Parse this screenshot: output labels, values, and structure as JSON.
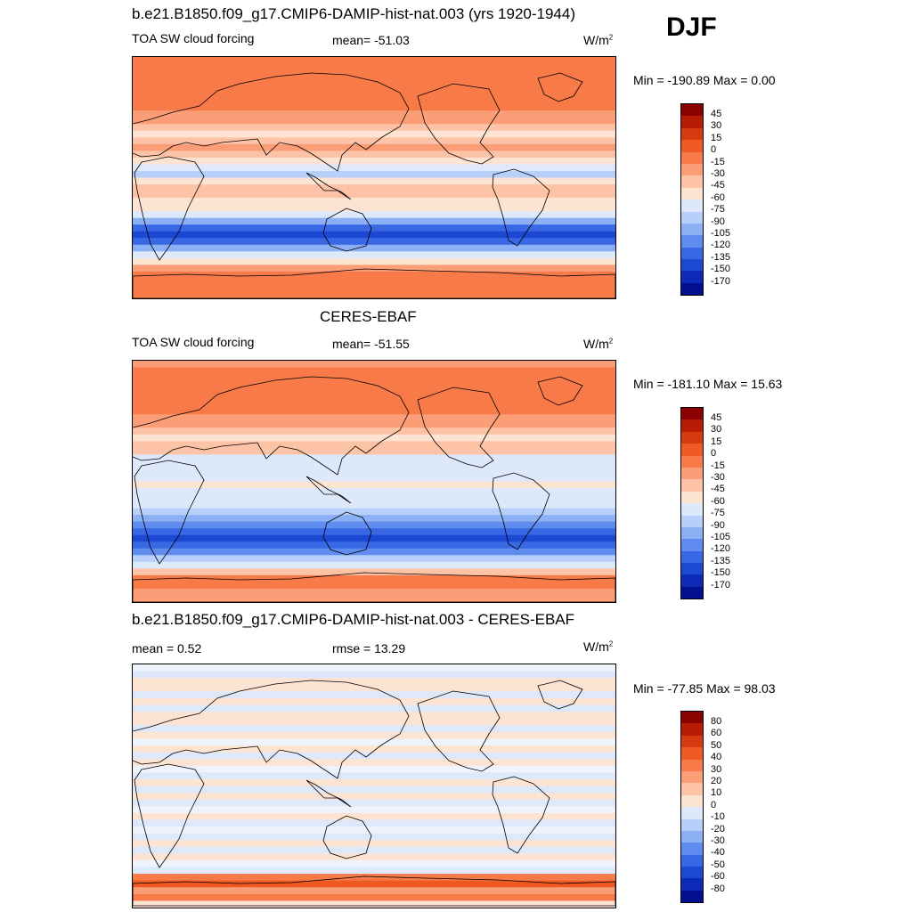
{
  "season": "DJF",
  "panels": [
    {
      "title": "b.e21.B1850.f09_g17.CMIP6-DAMIP-hist-nat.003 (yrs 1920-1944)",
      "left_label": "TOA SW cloud forcing",
      "center_label": "mean= -51.03",
      "units_base": "W/m",
      "units_exp": "2",
      "minmax": "Min = -190.89 Max =   0.00",
      "colorbar_ticks": [
        "45",
        "30",
        "15",
        "0",
        "-15",
        "-30",
        "-45",
        "-60",
        "-75",
        "-90",
        "-105",
        "-120",
        "-135",
        "-150",
        "-170"
      ],
      "colorbar_colors": [
        "#8b0000",
        "#b81c05",
        "#d83a10",
        "#ef5a24",
        "#f77a48",
        "#fb9e78",
        "#fdc3a6",
        "#fde3d2",
        "#dde9fb",
        "#b8d0f9",
        "#8cb0f4",
        "#5f8cee",
        "#3868e4",
        "#1c48d3",
        "#0c2ab5",
        "#020f8e"
      ],
      "zonal_bands": [
        "o0",
        "o0",
        "o0",
        "o0",
        "o0",
        "o0",
        "o0",
        "o0",
        "o1",
        "o1",
        "o2",
        "o3",
        "o2",
        "o1",
        "o2",
        "o3",
        "c1",
        "c2",
        "o3",
        "o2",
        "o2",
        "o3",
        "o3",
        "c1",
        "c3",
        "c5",
        "c6",
        "c5",
        "c3",
        "c1",
        "o3",
        "o1",
        "o0",
        "o0",
        "o0",
        "o0"
      ]
    },
    {
      "title": "CERES-EBAF",
      "left_label": "TOA SW cloud forcing",
      "center_label": "mean= -51.55",
      "units_base": "W/m",
      "units_exp": "2",
      "minmax": "Min = -181.10 Max =  15.63",
      "colorbar_ticks": [
        "45",
        "30",
        "15",
        "0",
        "-15",
        "-30",
        "-45",
        "-60",
        "-75",
        "-90",
        "-105",
        "-120",
        "-135",
        "-150",
        "-170"
      ],
      "colorbar_colors": [
        "#8b0000",
        "#b81c05",
        "#d83a10",
        "#ef5a24",
        "#f77a48",
        "#fb9e78",
        "#fdc3a6",
        "#fde3d2",
        "#dde9fb",
        "#b8d0f9",
        "#8cb0f4",
        "#5f8cee",
        "#3868e4",
        "#1c48d3",
        "#0c2ab5",
        "#020f8e"
      ],
      "zonal_bands": [
        "o1",
        "o0",
        "o0",
        "o0",
        "o0",
        "o0",
        "o0",
        "o0",
        "o1",
        "o1",
        "o2",
        "o3",
        "o2",
        "o2",
        "c1",
        "c1",
        "c1",
        "c1",
        "o3",
        "c1",
        "c1",
        "c1",
        "c2",
        "c3",
        "c4",
        "c5",
        "c6",
        "c5",
        "c4",
        "c2",
        "c1",
        "o2",
        "o0",
        "o0",
        "o1",
        "o1"
      ]
    },
    {
      "title": "b.e21.B1850.f09_g17.CMIP6-DAMIP-hist-nat.003 - CERES-EBAF",
      "left_label": "mean =   0.52",
      "center_label": "rmse =  13.29",
      "units_base": "W/m",
      "units_exp": "2",
      "minmax": "Min = -77.85 Max =  98.03",
      "colorbar_ticks": [
        "80",
        "60",
        "50",
        "40",
        "30",
        "20",
        "10",
        "0",
        "-10",
        "-20",
        "-30",
        "-40",
        "-50",
        "-60",
        "-80"
      ],
      "colorbar_colors": [
        "#8b0000",
        "#b81c05",
        "#d83a10",
        "#ef5a24",
        "#f77a48",
        "#fb9e78",
        "#fdc3a6",
        "#fde3d2",
        "#dde9fb",
        "#b8d0f9",
        "#8cb0f4",
        "#5f8cee",
        "#3868e4",
        "#1c48d3",
        "#0c2ab5",
        "#020f8e"
      ],
      "zonal_bands": [
        "d2",
        "d1",
        "d0",
        "d0",
        "d1",
        "d0",
        "d1",
        "d0",
        "d0",
        "d1",
        "d0",
        "d2",
        "d0",
        "d1",
        "d0",
        "d2",
        "d1",
        "d0",
        "d1",
        "d0",
        "d1",
        "d2",
        "d0",
        "d1",
        "d2",
        "d1",
        "d0",
        "d1",
        "d0",
        "d2",
        "d1",
        "u1",
        "u2",
        "u3",
        "u1",
        "d0"
      ]
    }
  ]
}
